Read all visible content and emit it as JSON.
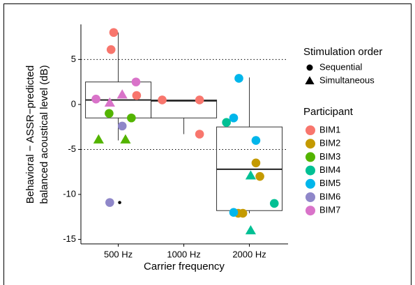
{
  "chart_data": {
    "type": "box",
    "ylabel": [
      "Behavioral − ASSR−predicted",
      "balanced acoustical level (dB)"
    ],
    "xlabel": "Carrier frequency",
    "categories": [
      "500 Hz",
      "1000 Hz",
      "2000 Hz"
    ],
    "boxes": [
      {
        "whisker_low": -4.0,
        "q1": -1.5,
        "median": 0.5,
        "q3": 2.5,
        "whisker_high": 8.0,
        "outliers": [
          -10.9
        ]
      },
      {
        "whisker_low": -3.3,
        "q1": -1.5,
        "median": 0.4,
        "q3": 0.5,
        "whisker_high": 0.5,
        "outliers": []
      },
      {
        "whisker_low": -12.1,
        "q1": -11.8,
        "median": -7.2,
        "q3": -2.5,
        "whisker_high": 3.0,
        "outliers": []
      }
    ],
    "xlim": [
      0.43,
      3.59
    ],
    "ylim": [
      -15.5,
      8.9
    ],
    "yticks": [
      -15,
      -10,
      -5,
      0,
      5
    ],
    "hlines": [
      5,
      -5
    ],
    "shape_legend": {
      "title": "Stimulation order",
      "items": [
        {
          "label": "Sequential",
          "shape": "circle"
        },
        {
          "label": "Simultaneous",
          "shape": "triangle"
        }
      ]
    },
    "color_legend_title": "Participant",
    "series": [
      {
        "name": "BIM1",
        "color": "#F8766D",
        "x": [
          0.93,
          0.89,
          1.28,
          1.67,
          2.24,
          2.24
        ],
        "values": [
          8.0,
          6.1,
          1.0,
          0.5,
          0.5,
          -3.3
        ],
        "shapes": [
          "circle",
          "circle",
          "circle",
          "circle",
          "circle",
          "circle"
        ]
      },
      {
        "name": "BIM2",
        "color": "#C49A00",
        "x": [
          3.1,
          3.16,
          2.83,
          2.9
        ],
        "values": [
          -6.5,
          -8.0,
          -12.1,
          -12.1
        ],
        "shapes": [
          "circle",
          "circle",
          "circle",
          "circle"
        ]
      },
      {
        "name": "BIM3",
        "color": "#53B400",
        "x": [
          0.86,
          1.2,
          0.7,
          1.11
        ],
        "values": [
          -1.0,
          -1.5,
          -3.9,
          -3.9
        ],
        "shapes": [
          "circle",
          "circle",
          "triangle",
          "triangle"
        ]
      },
      {
        "name": "BIM4",
        "color": "#00C094",
        "x": [
          2.65,
          3.02,
          3.38,
          3.02
        ],
        "values": [
          -2.0,
          -7.9,
          -11.0,
          -14.0
        ],
        "shapes": [
          "circle",
          "triangle",
          "circle",
          "triangle"
        ]
      },
      {
        "name": "BIM5",
        "color": "#00B6EB",
        "x": [
          2.84,
          2.76,
          3.1,
          2.76
        ],
        "values": [
          2.9,
          -1.5,
          -4.0,
          -12.0
        ],
        "shapes": [
          "circle",
          "circle",
          "circle",
          "circle"
        ]
      },
      {
        "name": "BIM6",
        "color": "#8F87C9",
        "x": [
          1.06,
          0.87
        ],
        "values": [
          -2.4,
          -10.9
        ],
        "shapes": [
          "circle",
          "circle"
        ]
      },
      {
        "name": "BIM7",
        "color": "#D973C9",
        "x": [
          1.27,
          0.66,
          1.06,
          0.87
        ],
        "values": [
          2.5,
          0.6,
          1.1,
          0.2
        ],
        "shapes": [
          "circle",
          "circle",
          "triangle",
          "triangle"
        ]
      }
    ]
  }
}
